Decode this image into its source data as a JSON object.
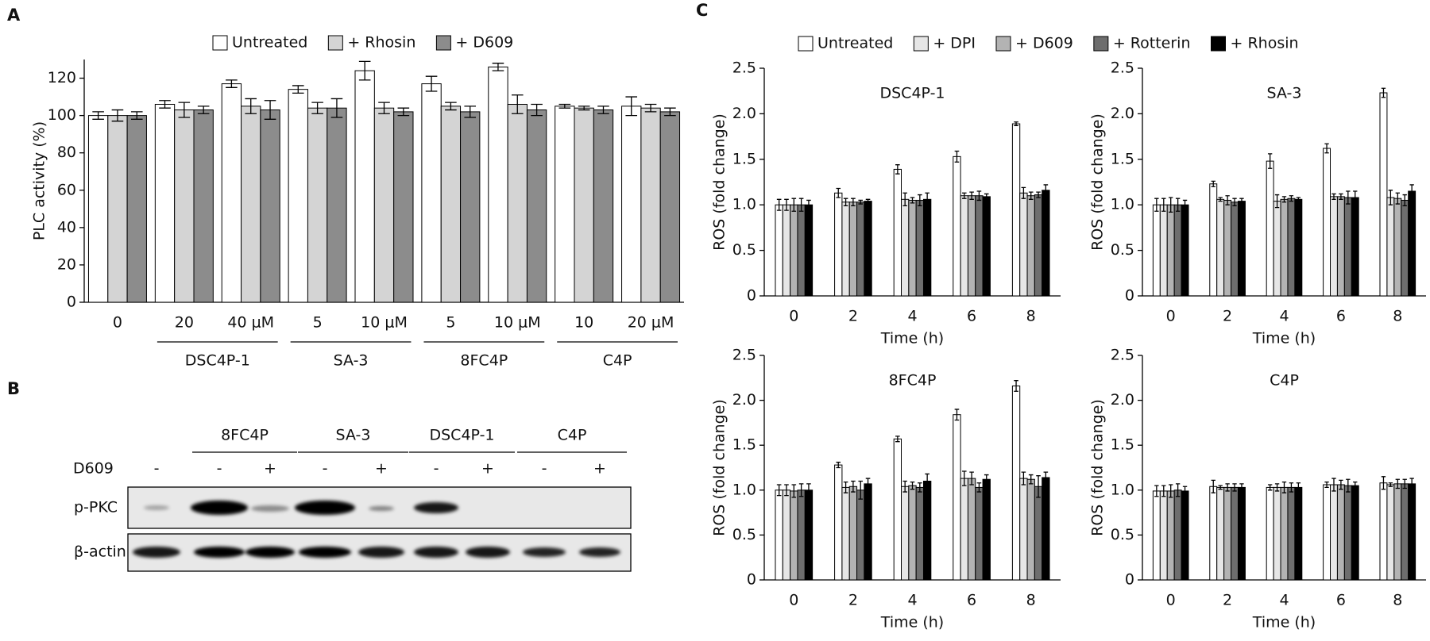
{
  "chart_data": [
    {
      "type": "bar",
      "panel_label": "A",
      "ylabel": "PLC activity (%)",
      "categories": [
        "0",
        "20",
        "40 μM",
        "5",
        "10 μM",
        "5",
        "10 μM",
        "10",
        "20 μM"
      ],
      "group_labels": [
        null,
        "DSC4P-1",
        "DSC4P-1",
        "SA-3",
        "SA-3",
        "8FC4P",
        "8FC4P",
        "C4P",
        "C4P"
      ],
      "series": [
        {
          "name": "Untreated",
          "color": "#ffffff",
          "values": [
            100,
            106,
            117,
            114,
            124,
            117,
            126,
            105,
            105
          ],
          "errors": [
            2,
            2,
            2,
            2,
            5,
            4,
            2,
            1,
            5
          ]
        },
        {
          "name": "+ Rhosin",
          "color": "#d4d4d4",
          "values": [
            100,
            103,
            105,
            104,
            104,
            105,
            106,
            104,
            104
          ],
          "errors": [
            3,
            4,
            4,
            3,
            3,
            2,
            5,
            1,
            2
          ]
        },
        {
          "name": "+ D609",
          "color": "#8c8c8c",
          "values": [
            100,
            103,
            103,
            104,
            102,
            102,
            103,
            103,
            102
          ],
          "errors": [
            2,
            2,
            5,
            5,
            2,
            3,
            3,
            2,
            2
          ]
        }
      ],
      "ylim": [
        0,
        130
      ],
      "yticks": [
        0,
        20,
        40,
        60,
        80,
        100,
        120
      ],
      "legend": "top"
    },
    {
      "type": "bar",
      "panel_label": "C",
      "ylabel": "ROS (fold change)",
      "xlabel": "Time (h)",
      "categories": [
        "0",
        "2",
        "4",
        "6",
        "8"
      ],
      "series": [
        {
          "name": "Untreated",
          "color": "#ffffff"
        },
        {
          "name": "+ DPI",
          "color": "#e6e6e6"
        },
        {
          "name": "+ D609",
          "color": "#b3b3b3"
        },
        {
          "name": "+ Rotterin",
          "color": "#6e6e6e"
        },
        {
          "name": "+ Rhosin",
          "color": "#000000"
        }
      ],
      "ylim": [
        0,
        2.5
      ],
      "yticks": [
        0,
        0.5,
        {
          "value": 1,
          "label": "1.0"
        },
        1.5,
        {
          "value": 2,
          "label": "2.0"
        },
        2.5
      ],
      "legend": "top",
      "subplots": [
        {
          "title": "DSC4P-1",
          "values": [
            [
              1.0,
              1.13,
              1.39,
              1.53,
              1.89
            ],
            [
              1.0,
              1.03,
              1.06,
              1.1,
              1.13
            ],
            [
              1.0,
              1.03,
              1.05,
              1.1,
              1.1
            ],
            [
              1.0,
              1.03,
              1.05,
              1.1,
              1.11
            ],
            [
              1.0,
              1.04,
              1.06,
              1.09,
              1.16
            ]
          ],
          "errors": [
            [
              0.06,
              0.05,
              0.05,
              0.06,
              0.02
            ],
            [
              0.06,
              0.04,
              0.07,
              0.03,
              0.06
            ],
            [
              0.07,
              0.04,
              0.03,
              0.04,
              0.04
            ],
            [
              0.07,
              0.02,
              0.06,
              0.05,
              0.03
            ],
            [
              0.05,
              0.02,
              0.07,
              0.03,
              0.06
            ]
          ]
        },
        {
          "title": "SA-3",
          "values": [
            [
              1.0,
              1.23,
              1.48,
              1.62,
              2.23
            ],
            [
              1.0,
              1.06,
              1.04,
              1.09,
              1.08
            ],
            [
              1.0,
              1.05,
              1.06,
              1.09,
              1.07
            ],
            [
              1.0,
              1.03,
              1.07,
              1.08,
              1.05
            ],
            [
              1.0,
              1.04,
              1.06,
              1.08,
              1.15
            ]
          ],
          "errors": [
            [
              0.07,
              0.03,
              0.08,
              0.05,
              0.05
            ],
            [
              0.07,
              0.02,
              0.07,
              0.03,
              0.08
            ],
            [
              0.08,
              0.05,
              0.03,
              0.03,
              0.06
            ],
            [
              0.07,
              0.04,
              0.03,
              0.07,
              0.06
            ],
            [
              0.05,
              0.03,
              0.02,
              0.07,
              0.07
            ]
          ]
        },
        {
          "title": "8FC4P",
          "values": [
            [
              1.0,
              1.28,
              1.57,
              1.84,
              2.16
            ],
            [
              1.0,
              1.03,
              1.04,
              1.13,
              1.13
            ],
            [
              0.99,
              1.04,
              1.05,
              1.13,
              1.12
            ],
            [
              1.0,
              1.0,
              1.03,
              1.03,
              1.04
            ],
            [
              1.0,
              1.07,
              1.1,
              1.12,
              1.14
            ]
          ],
          "errors": [
            [
              0.06,
              0.03,
              0.03,
              0.06,
              0.06
            ],
            [
              0.06,
              0.06,
              0.06,
              0.08,
              0.07
            ],
            [
              0.07,
              0.06,
              0.04,
              0.07,
              0.05
            ],
            [
              0.07,
              0.1,
              0.05,
              0.05,
              0.12
            ],
            [
              0.07,
              0.06,
              0.08,
              0.05,
              0.06
            ]
          ]
        },
        {
          "title": "C4P",
          "values": [
            [
              0.99,
              1.04,
              1.03,
              1.06,
              1.08
            ],
            [
              0.99,
              1.03,
              1.03,
              1.06,
              1.06
            ],
            [
              0.99,
              1.03,
              1.03,
              1.06,
              1.07
            ],
            [
              1.0,
              1.03,
              1.03,
              1.05,
              1.07
            ],
            [
              0.99,
              1.03,
              1.03,
              1.05,
              1.07
            ]
          ],
          "errors": [
            [
              0.06,
              0.07,
              0.03,
              0.03,
              0.07
            ],
            [
              0.06,
              0.02,
              0.04,
              0.07,
              0.02
            ],
            [
              0.07,
              0.04,
              0.06,
              0.05,
              0.05
            ],
            [
              0.07,
              0.04,
              0.05,
              0.07,
              0.05
            ],
            [
              0.05,
              0.04,
              0.05,
              0.04,
              0.06
            ]
          ]
        }
      ]
    }
  ],
  "blot": {
    "panel_label": "B",
    "groups": [
      "8FC4P",
      "SA-3",
      "DSC4P-1",
      "C4P"
    ],
    "treatment": "D609",
    "lanes": [
      "-",
      "-",
      "+",
      "-",
      "+",
      "-",
      "+",
      "-",
      "+"
    ],
    "rows": [
      "p-PKC",
      "β-actin"
    ]
  }
}
